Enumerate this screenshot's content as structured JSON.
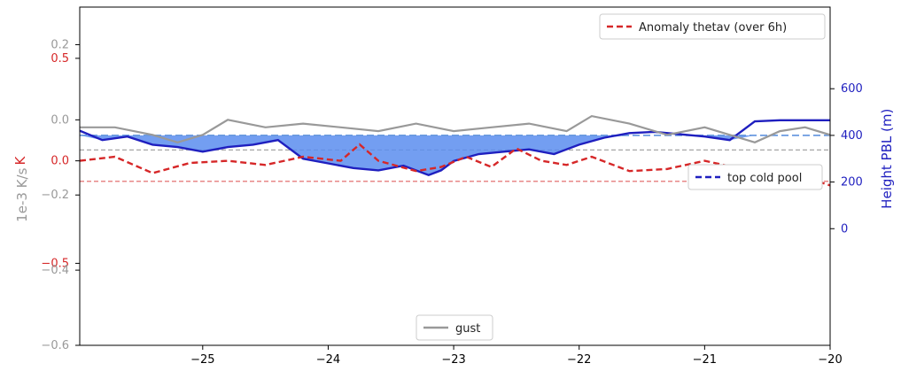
{
  "chart_data": {
    "type": "line",
    "xlim": [
      -25.98,
      -20.0
    ],
    "x_ticks": [
      -25,
      -24,
      -23,
      -22,
      -21,
      -20
    ],
    "x_tick_labels": [
      "−25",
      "−24",
      "−23",
      "−22",
      "−21",
      "−20"
    ],
    "panels": {
      "anomaly": {
        "ylabel": "K",
        "color": "#d62728",
        "ylim": [
          -0.9,
          0.75
        ],
        "y_ticks": [
          0.5,
          0.0,
          -0.5
        ],
        "y_tick_labels": [
          "0.5",
          "0.0",
          "−0.5"
        ],
        "reference_line": -0.1,
        "series": [
          {
            "name": "Anomaly thetav (over 6h)",
            "style": "dashed",
            "x": [
              -25.98,
              -25.7,
              -25.4,
              -25.1,
              -24.8,
              -24.5,
              -24.2,
              -23.9,
              -23.75,
              -23.6,
              -23.3,
              -23.1,
              -22.9,
              -22.7,
              -22.5,
              -22.3,
              -22.1,
              -21.9,
              -21.6,
              -21.3,
              -21.0,
              -20.7,
              -20.4,
              -20.2,
              -20.0
            ],
            "y": [
              0.0,
              0.02,
              -0.06,
              -0.01,
              0.0,
              -0.02,
              0.02,
              0.0,
              0.08,
              0.0,
              -0.05,
              -0.03,
              0.02,
              -0.03,
              0.06,
              0.0,
              -0.02,
              0.02,
              -0.05,
              -0.04,
              0.0,
              -0.04,
              -0.06,
              -0.08,
              -0.12
            ]
          }
        ]
      },
      "pbl": {
        "ylabel": "Height PBL (m)",
        "color": "#1f1fbf",
        "fill_color": "#5b8def",
        "ylim": [
          -500,
          950
        ],
        "y_ticks": [
          600,
          400,
          200,
          0
        ],
        "y_tick_labels": [
          "600",
          "400",
          "200",
          "0"
        ],
        "top_cold_pool": 400,
        "series": [
          {
            "name": "PBL height",
            "style": "solid",
            "x": [
              -25.98,
              -25.8,
              -25.6,
              -25.4,
              -25.2,
              -25.0,
              -24.8,
              -24.6,
              -24.4,
              -24.2,
              -24.0,
              -23.8,
              -23.6,
              -23.4,
              -23.2,
              -23.1,
              -23.0,
              -22.8,
              -22.6,
              -22.4,
              -22.2,
              -22.0,
              -21.8,
              -21.6,
              -21.4,
              -21.2,
              -21.0,
              -20.8,
              -20.6,
              -20.4,
              -20.2,
              -20.0
            ],
            "y": [
              420,
              380,
              395,
              360,
              350,
              330,
              350,
              360,
              380,
              300,
              280,
              260,
              250,
              270,
              230,
              250,
              290,
              320,
              330,
              340,
              320,
              360,
              390,
              410,
              415,
              405,
              395,
              380,
              460,
              465,
              465,
              465
            ]
          },
          {
            "name": "top cold pool",
            "style": "dashed"
          }
        ]
      },
      "gust": {
        "ylabel": "1e-3 K/s",
        "color": "#999999",
        "ylim": [
          -0.6,
          0.3
        ],
        "y_ticks": [
          0.2,
          0.0,
          -0.2,
          -0.4,
          -0.6
        ],
        "y_tick_labels": [
          "0.2",
          "0.0",
          "−0.2",
          "−0.4",
          "−0.6"
        ],
        "reference_line": -0.08,
        "series": [
          {
            "name": "gust",
            "style": "solid",
            "x": [
              -25.98,
              -25.7,
              -25.4,
              -25.2,
              -25.0,
              -24.8,
              -24.5,
              -24.2,
              -23.9,
              -23.6,
              -23.3,
              -23.0,
              -22.7,
              -22.4,
              -22.1,
              -21.9,
              -21.6,
              -21.3,
              -21.0,
              -20.8,
              -20.6,
              -20.4,
              -20.2,
              -20.0
            ],
            "y": [
              -0.02,
              -0.02,
              -0.04,
              -0.06,
              -0.04,
              0.0,
              -0.02,
              -0.01,
              -0.02,
              -0.03,
              -0.01,
              -0.03,
              -0.02,
              -0.01,
              -0.03,
              0.01,
              -0.01,
              -0.04,
              -0.02,
              -0.04,
              -0.06,
              -0.03,
              -0.02,
              -0.04
            ]
          }
        ]
      }
    }
  }
}
